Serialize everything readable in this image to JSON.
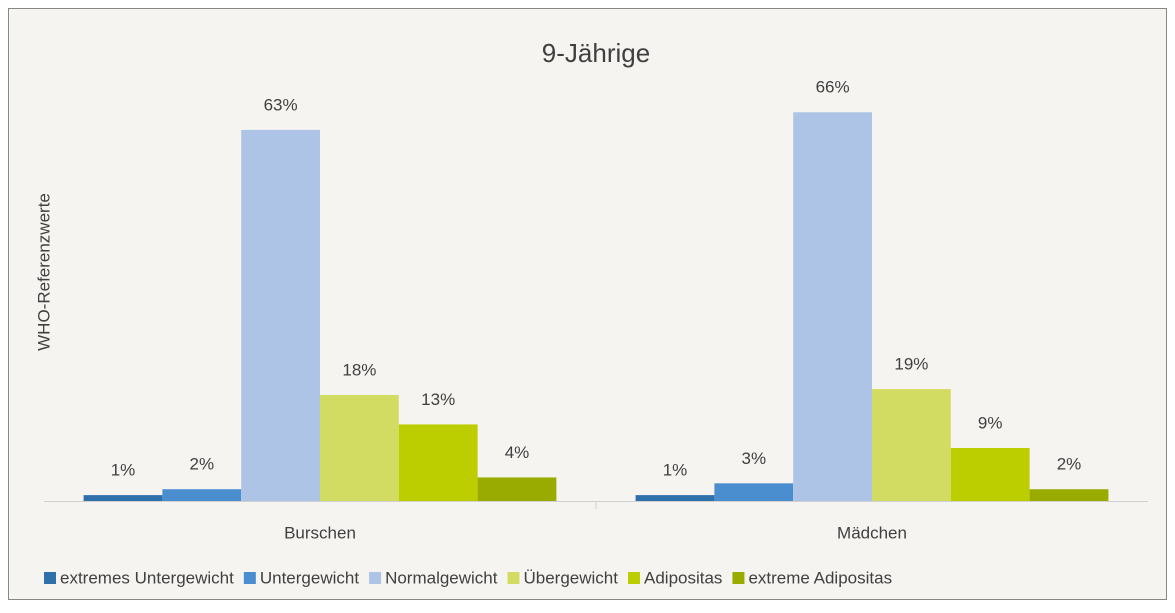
{
  "chart_data": {
    "type": "bar",
    "title": "9-Jährige",
    "y_axis_label": "WHO-Referenzwerte",
    "categories": [
      "Burschen",
      "Mädchen"
    ],
    "legend": "bottom",
    "series": [
      {
        "name": "extremes Untergewicht",
        "color": "#2f6faa",
        "values": [
          1,
          1
        ],
        "value_labels": [
          "1%",
          "1%"
        ]
      },
      {
        "name": "Untergewicht",
        "color": "#4a8ed0",
        "values": [
          2,
          3
        ],
        "value_labels": [
          "2%",
          "3%"
        ]
      },
      {
        "name": "Normalgewicht",
        "color": "#aec4e6",
        "values": [
          63,
          66
        ],
        "value_labels": [
          "63%",
          "66%"
        ]
      },
      {
        "name": "Übergewicht",
        "color": "#d3dc62",
        "values": [
          18,
          19
        ],
        "value_labels": [
          "18%",
          "19%"
        ]
      },
      {
        "name": "Adipositas",
        "color": "#bccd00",
        "values": [
          13,
          9
        ],
        "value_labels": [
          "13%",
          "9%"
        ]
      },
      {
        "name": "extreme Adipositas",
        "color": "#9aab00",
        "values": [
          4,
          2
        ],
        "value_labels": [
          "4%",
          "2%"
        ]
      }
    ]
  }
}
